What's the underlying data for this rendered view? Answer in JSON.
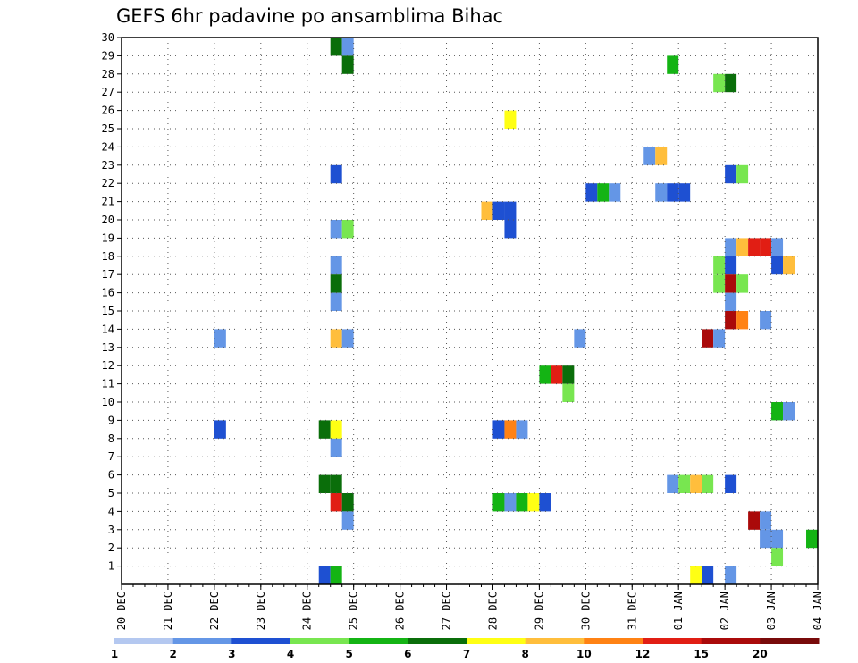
{
  "chart_data": {
    "type": "heatmap",
    "title": "GEFS 6hr padavine po ansamblima Bihac",
    "xlabel": "",
    "ylabel": "",
    "x_ticks": [
      "20 DEC",
      "21 DEC",
      "22 DEC",
      "23 DEC",
      "24 DEC",
      "25 DEC",
      "26 DEC",
      "27 DEC",
      "28 DEC",
      "29 DEC",
      "30 DEC",
      "31 DEC",
      "01 JAN",
      "02 JAN",
      "03 JAN",
      "04 JAN"
    ],
    "y_ticks": [
      1,
      2,
      3,
      4,
      5,
      6,
      7,
      8,
      9,
      10,
      11,
      12,
      13,
      14,
      15,
      16,
      17,
      18,
      19,
      20,
      21,
      22,
      23,
      24,
      25,
      26,
      27,
      28,
      29,
      30
    ],
    "grid": true,
    "x_range_days": [
      0,
      15
    ],
    "y_range": [
      0,
      30
    ],
    "legend": {
      "position": "bottom",
      "labels": [
        "1",
        "2",
        "3",
        "4",
        "5",
        "6",
        "7",
        "8",
        "10",
        "12",
        "15",
        "20"
      ],
      "colors": [
        "#b4c8f0",
        "#6496e6",
        "#1e50d2",
        "#78e650",
        "#14b414",
        "#0a6e0a",
        "#ffff14",
        "#ffbe3c",
        "#ff8214",
        "#e11e14",
        "#aa0a0a",
        "#780a0a"
      ]
    },
    "cells": [
      [
        4.5,
        30,
        5
      ],
      [
        4.75,
        30,
        1
      ],
      [
        4.75,
        29,
        5
      ],
      [
        11.75,
        29,
        4
      ],
      [
        12.75,
        28,
        3
      ],
      [
        13.0,
        28,
        5
      ],
      [
        8.25,
        26,
        6
      ],
      [
        11.25,
        24,
        1
      ],
      [
        11.5,
        24,
        7
      ],
      [
        4.5,
        23,
        2
      ],
      [
        13.0,
        23,
        2
      ],
      [
        13.25,
        23,
        3
      ],
      [
        10.0,
        22,
        2
      ],
      [
        10.25,
        22,
        4
      ],
      [
        10.5,
        22,
        1
      ],
      [
        11.5,
        22,
        1
      ],
      [
        11.75,
        22,
        2
      ],
      [
        12.0,
        22,
        2
      ],
      [
        7.75,
        21,
        7
      ],
      [
        8.0,
        21,
        2
      ],
      [
        8.25,
        21,
        2
      ],
      [
        4.5,
        20,
        1
      ],
      [
        4.75,
        20,
        3
      ],
      [
        8.25,
        20,
        2
      ],
      [
        13.0,
        19,
        1
      ],
      [
        13.25,
        19,
        7
      ],
      [
        13.5,
        19,
        9
      ],
      [
        13.75,
        19,
        9
      ],
      [
        14.0,
        19,
        1
      ],
      [
        4.5,
        18,
        1
      ],
      [
        12.75,
        18,
        3
      ],
      [
        13.0,
        18,
        2
      ],
      [
        14.0,
        18,
        2
      ],
      [
        14.25,
        18,
        7
      ],
      [
        4.5,
        17,
        5
      ],
      [
        12.75,
        17,
        3
      ],
      [
        13.0,
        17,
        10
      ],
      [
        13.25,
        17,
        3
      ],
      [
        4.5,
        16,
        1
      ],
      [
        13.0,
        16,
        1
      ],
      [
        13.0,
        15,
        10
      ],
      [
        13.25,
        15,
        8
      ],
      [
        13.75,
        15,
        1
      ],
      [
        2.0,
        14,
        1
      ],
      [
        4.5,
        14,
        7
      ],
      [
        4.75,
        14,
        1
      ],
      [
        9.75,
        14,
        1
      ],
      [
        12.5,
        14,
        10
      ],
      [
        12.75,
        14,
        1
      ],
      [
        9.0,
        12,
        4
      ],
      [
        9.25,
        12,
        9
      ],
      [
        9.5,
        12,
        5
      ],
      [
        9.5,
        11,
        3
      ],
      [
        14.0,
        10,
        4
      ],
      [
        14.25,
        10,
        1
      ],
      [
        2.0,
        9,
        2
      ],
      [
        4.25,
        9,
        5
      ],
      [
        4.5,
        9,
        6
      ],
      [
        8.0,
        9,
        2
      ],
      [
        8.25,
        9,
        8
      ],
      [
        8.5,
        9,
        1
      ],
      [
        4.5,
        8,
        1
      ],
      [
        4.25,
        6,
        5
      ],
      [
        4.5,
        6,
        5
      ],
      [
        11.75,
        6,
        1
      ],
      [
        12.0,
        6,
        3
      ],
      [
        12.25,
        6,
        7
      ],
      [
        12.5,
        6,
        3
      ],
      [
        13.0,
        6,
        2
      ],
      [
        4.5,
        5,
        9
      ],
      [
        4.75,
        5,
        5
      ],
      [
        8.0,
        5,
        4
      ],
      [
        8.25,
        5,
        1
      ],
      [
        8.5,
        5,
        4
      ],
      [
        8.75,
        5,
        6
      ],
      [
        9.0,
        5,
        2
      ],
      [
        4.75,
        4,
        1
      ],
      [
        13.5,
        4,
        10
      ],
      [
        13.75,
        4,
        1
      ],
      [
        13.75,
        3,
        1
      ],
      [
        14.0,
        3,
        1
      ],
      [
        14.75,
        3,
        4
      ],
      [
        14.0,
        2,
        3
      ],
      [
        4.25,
        1,
        2
      ],
      [
        4.5,
        1,
        4
      ],
      [
        12.25,
        1,
        6
      ],
      [
        12.5,
        1,
        2
      ],
      [
        13.0,
        1,
        1
      ]
    ]
  }
}
